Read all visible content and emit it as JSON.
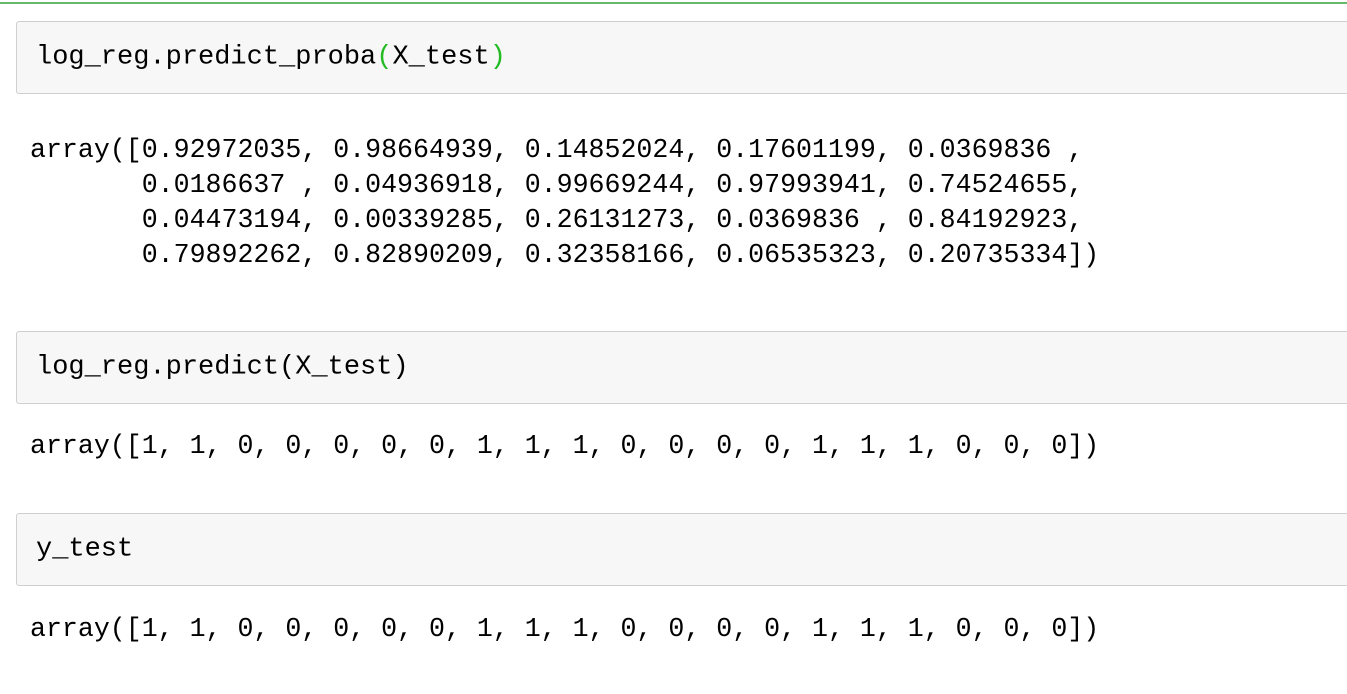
{
  "cells": [
    {
      "input": {
        "fn": "log_reg.predict_proba",
        "open": "(",
        "arg": "X_test",
        "close": ")"
      },
      "output": [
        "array([0.92972035, 0.98664939, 0.14852024, 0.17601199, 0.0369836 ,",
        "       0.0186637 , 0.04936918, 0.99669244, 0.97993941, 0.74524655,",
        "       0.04473194, 0.00339285, 0.26131273, 0.0369836 , 0.84192923,",
        "       0.79892262, 0.82890209, 0.32358166, 0.06535323, 0.20735334])"
      ]
    },
    {
      "input": {
        "code": "log_reg.predict(X_test)"
      },
      "output": [
        "array([1, 1, 0, 0, 0, 0, 0, 1, 1, 1, 0, 0, 0, 0, 1, 1, 1, 0, 0, 0])"
      ]
    },
    {
      "input": {
        "code": "y_test"
      },
      "output": [
        "array([1, 1, 0, 0, 0, 0, 0, 1, 1, 1, 0, 0, 0, 0, 1, 1, 1, 0, 0, 0])"
      ]
    }
  ],
  "colors": {
    "selected_cell_border": "#66bb6a",
    "matched_paren": "#22bb22",
    "input_bg": "#f7f7f7"
  }
}
